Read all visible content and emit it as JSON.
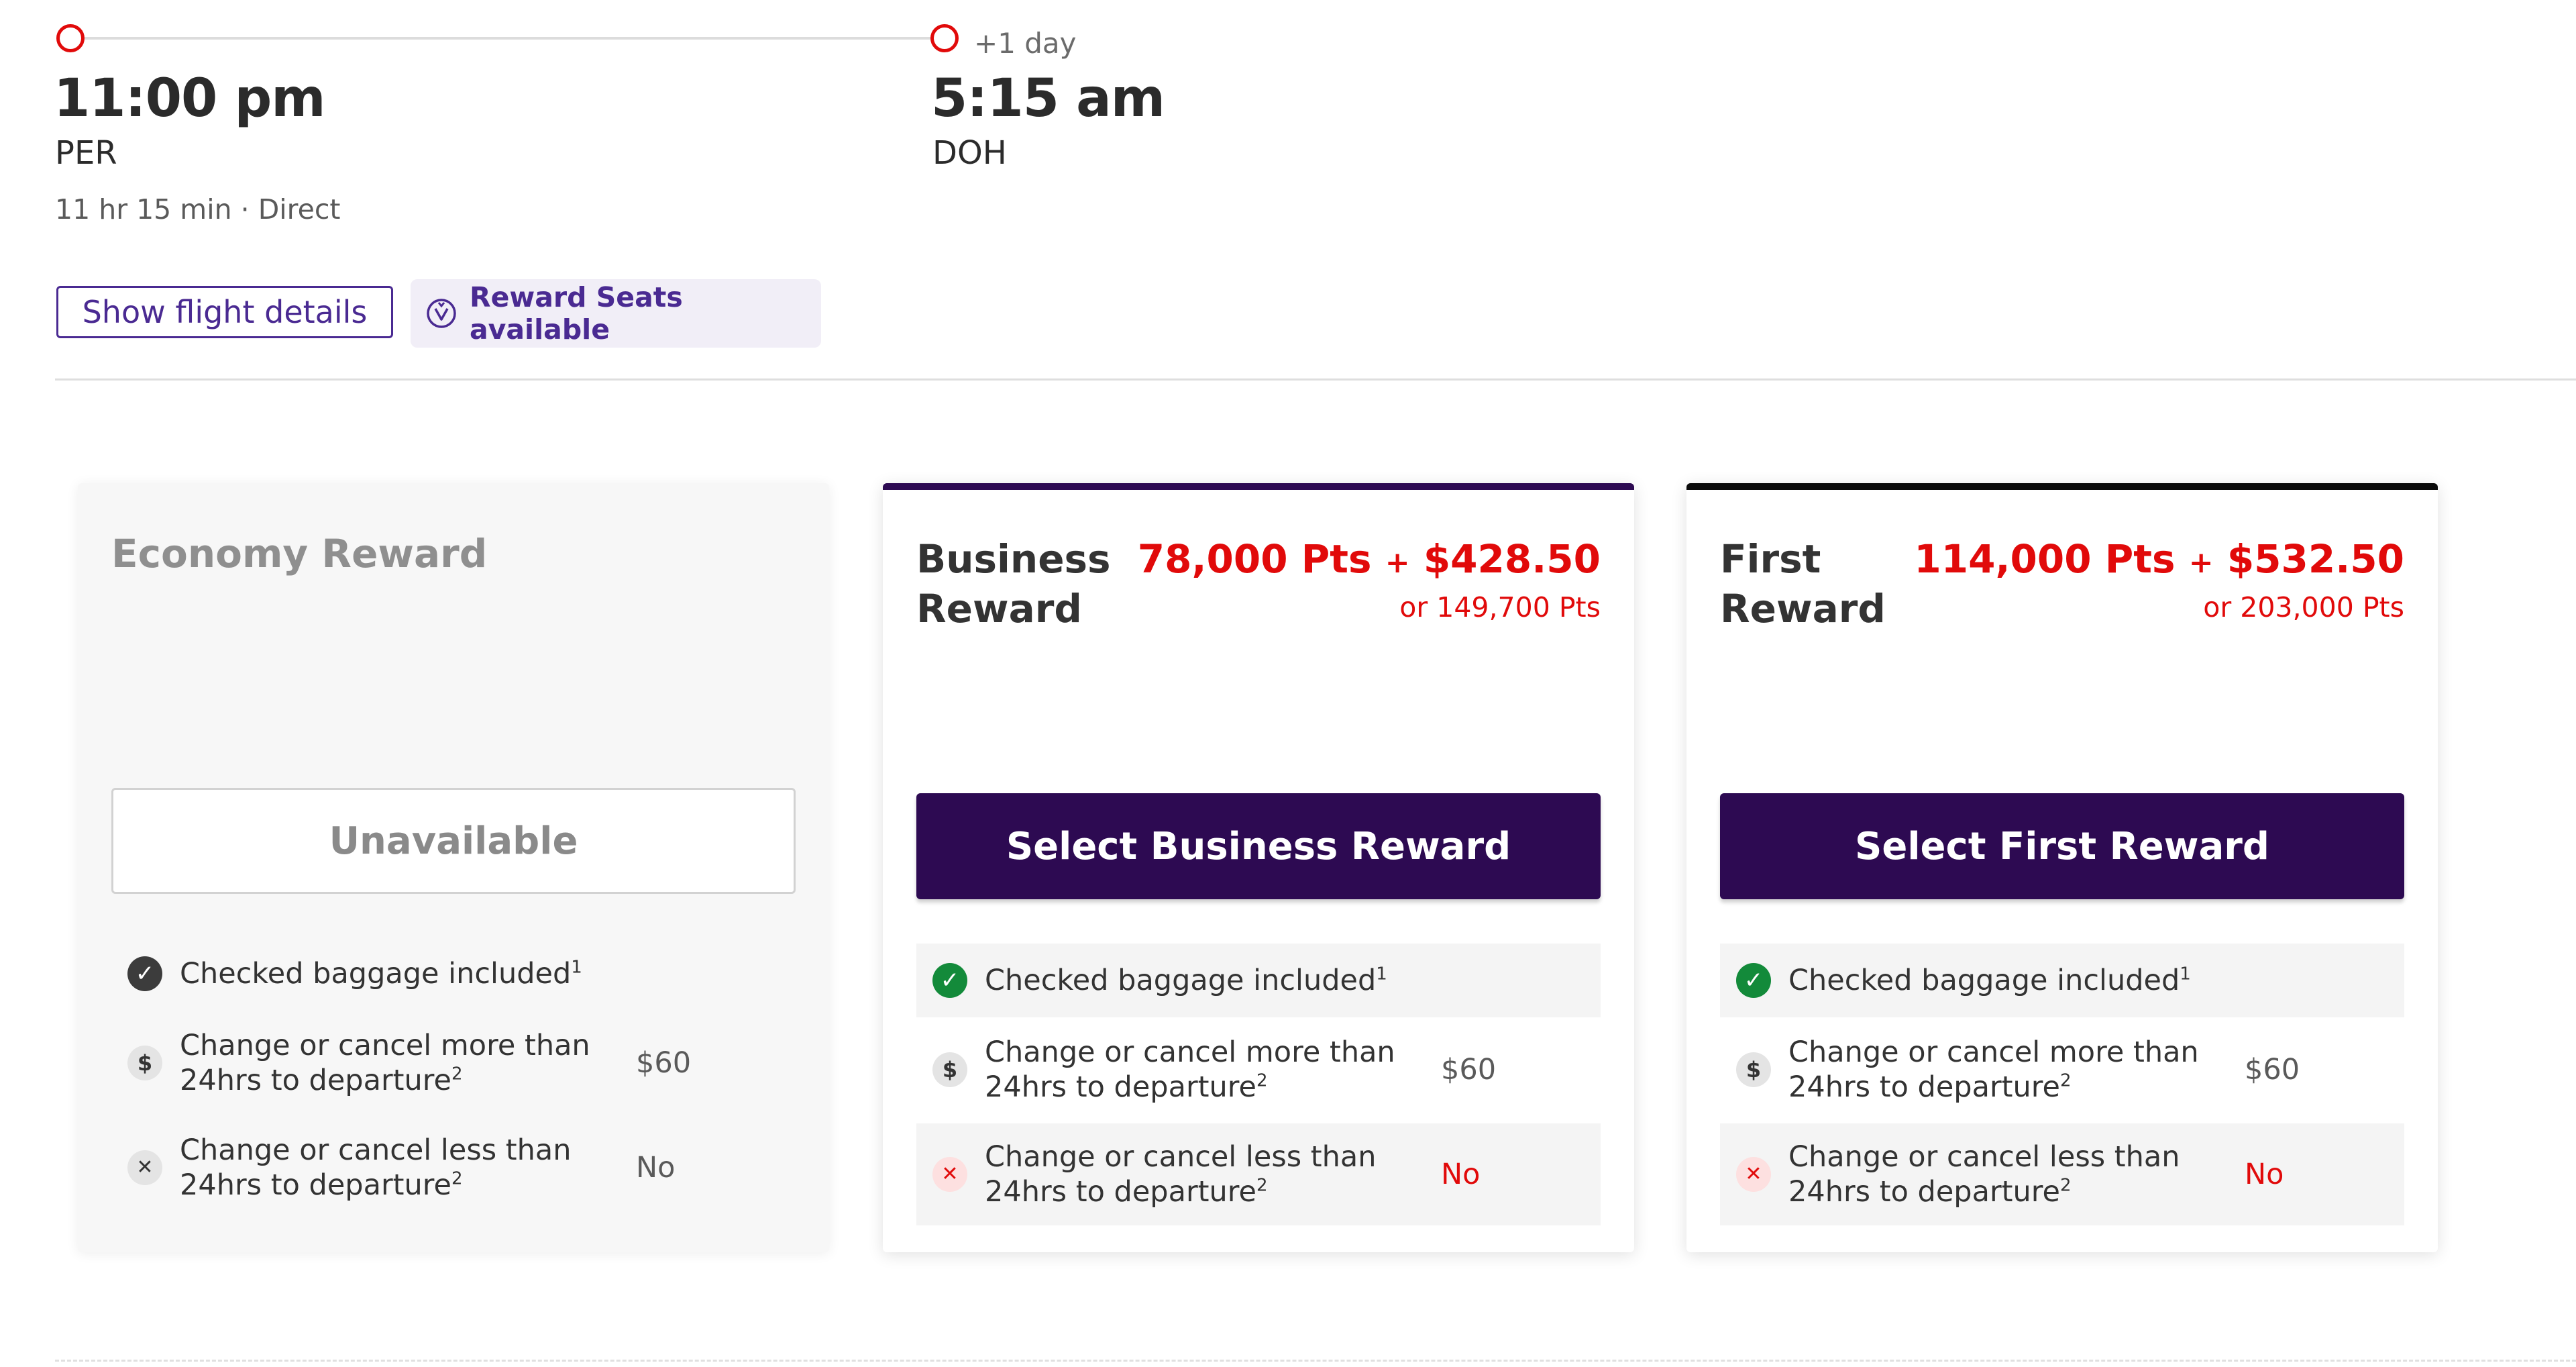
{
  "flight": {
    "plus_day": "+1 day",
    "depart_time": "11:00 pm",
    "depart_airport": "PER",
    "arrive_time": "5:15 am",
    "arrive_airport": "DOH",
    "duration": "11 hr 15 min · Direct",
    "details_button": "Show flight details",
    "reward_seats": "Reward Seats available"
  },
  "fares": {
    "economy": {
      "name": "Economy Reward",
      "button": "Unavailable",
      "features": [
        {
          "text": "Checked baggage included",
          "sup": "1",
          "value": ""
        },
        {
          "text": "Change or cancel more than 24hrs to departure",
          "sup": "2",
          "value": "$60"
        },
        {
          "text": "Change or cancel less than 24hrs to departure",
          "sup": "2",
          "value": "No"
        }
      ]
    },
    "business": {
      "name": "Business Reward",
      "points": "78,000 Pts",
      "plus": "+",
      "cash": "$428.50",
      "alt_price": "or 149,700 Pts",
      "button": "Select Business Reward",
      "features": [
        {
          "text": "Checked baggage included",
          "sup": "1",
          "value": ""
        },
        {
          "text": "Change or cancel more than 24hrs to departure",
          "sup": "2",
          "value": "$60"
        },
        {
          "text": "Change or cancel less than 24hrs to departure",
          "sup": "2",
          "value": "No"
        }
      ]
    },
    "first": {
      "name": "First Reward",
      "points": "114,000 Pts",
      "plus": "+",
      "cash": "$532.50",
      "alt_price": "or 203,000 Pts",
      "button": "Select First Reward",
      "features": [
        {
          "text": "Checked baggage included",
          "sup": "1",
          "value": ""
        },
        {
          "text": "Change or cancel more than 24hrs to departure",
          "sup": "2",
          "value": "$60"
        },
        {
          "text": "Change or cancel less than 24hrs to departure",
          "sup": "2",
          "value": "No"
        }
      ]
    }
  },
  "colors": {
    "brand_purple": "#2d0a52",
    "accent_red": "#e10a0a",
    "link_purple": "#4a2a92",
    "success_green": "#138a3a"
  },
  "icons": {
    "included": "check-circle-icon",
    "fee": "dollar-circle-icon",
    "not_allowed": "x-circle-icon",
    "reward": "velocity-reward-icon"
  }
}
